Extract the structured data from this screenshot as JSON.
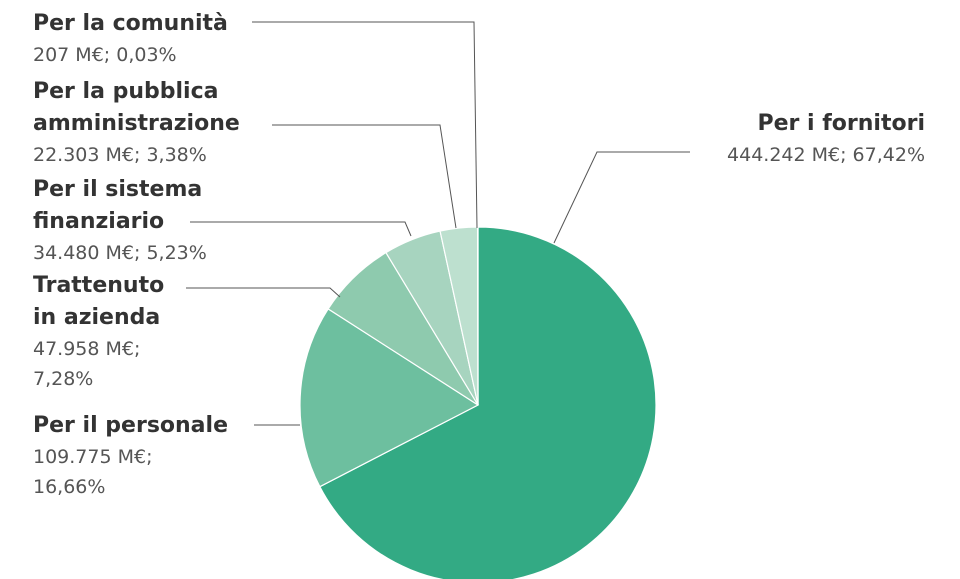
{
  "chart_data": {
    "type": "pie",
    "categories": [
      "Per i fornitori",
      "Per il personale",
      "Trattenuto in azienda",
      "Per il sistema finanziario",
      "Per la pubblica amministrazione",
      "Per la comunità"
    ],
    "values": [
      444242,
      109775,
      47958,
      34480,
      22303,
      207
    ],
    "value_labels": [
      "444.242 M€; 67,42%",
      "109.775 M€; 16,66%",
      "47.958 M€; 7,28%",
      "34.480 M€; 5,23%",
      "22.303 M€; 3,38%",
      "207 M€; 0,03%"
    ],
    "colors": [
      "#33aa84",
      "#6dbf9f",
      "#8ecaae",
      "#a7d4bf",
      "#bde0cf",
      "#cfe8dc"
    ]
  }
}
